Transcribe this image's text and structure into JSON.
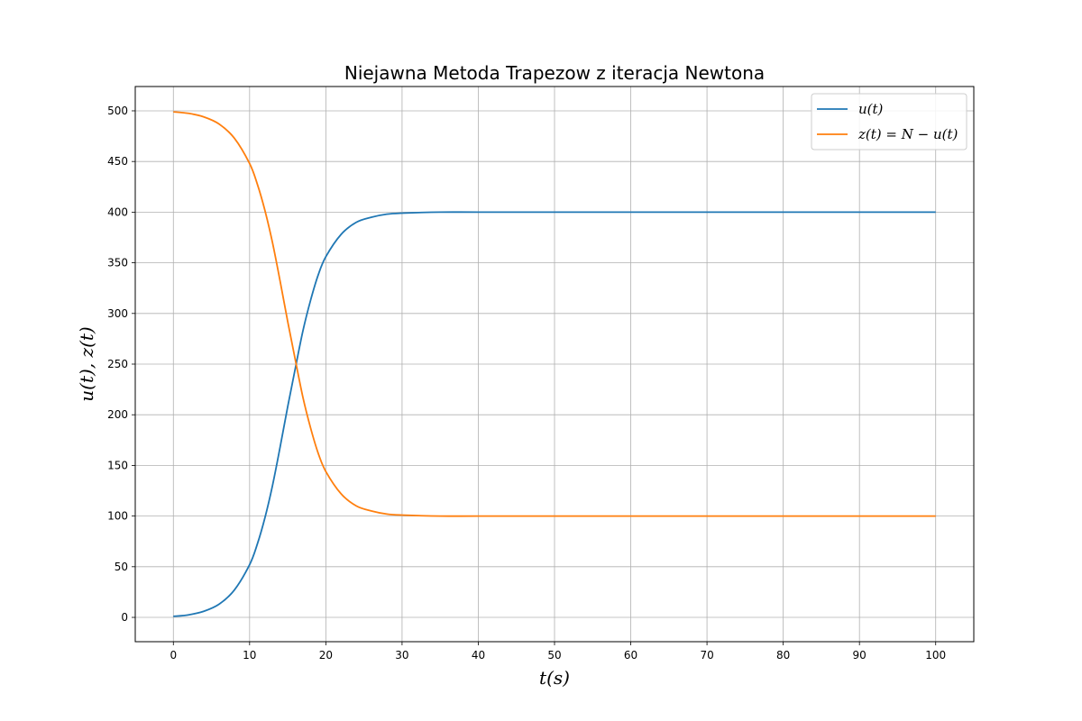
{
  "chart_data": {
    "type": "line",
    "title": "Niejawna Metoda Trapezow z iteracja Newtona",
    "xlabel": "t(s)",
    "ylabel": "u(t), z(t)",
    "xlim": [
      -5,
      105
    ],
    "ylim": [
      -24,
      524
    ],
    "xticks": [
      0,
      10,
      20,
      30,
      40,
      50,
      60,
      70,
      80,
      90,
      100
    ],
    "yticks": [
      0,
      50,
      100,
      150,
      200,
      250,
      300,
      350,
      400,
      450,
      500
    ],
    "grid": true,
    "legend_position": "top-right",
    "x": [
      0,
      2,
      4,
      6,
      8,
      10,
      11,
      12,
      13,
      14,
      15,
      16,
      17,
      18,
      19,
      20,
      22,
      24,
      26,
      28,
      30,
      35,
      40,
      50,
      60,
      70,
      80,
      90,
      100
    ],
    "series": [
      {
        "name": "u(t)",
        "color": "#1f77b4",
        "values": [
          1,
          2.5,
          6,
          13,
          27,
          52,
          72,
          98,
          130,
          168,
          208,
          246,
          283,
          313,
          338,
          356,
          378,
          390,
          395,
          398,
          399,
          400,
          400,
          400,
          400,
          400,
          400,
          400,
          400
        ]
      },
      {
        "name": "z(t) = N − u(t)",
        "color": "#ff7f0e",
        "values": [
          499,
          497.5,
          494,
          487,
          473,
          448,
          428,
          402,
          370,
          332,
          292,
          254,
          217,
          187,
          162,
          144,
          122,
          110,
          105,
          102,
          101,
          100,
          100,
          100,
          100,
          100,
          100,
          100,
          100
        ]
      }
    ]
  }
}
